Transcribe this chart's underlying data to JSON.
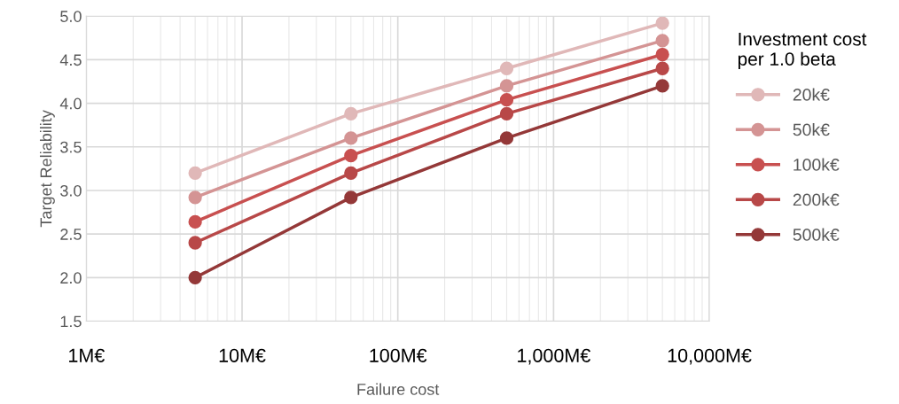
{
  "chart_data": {
    "type": "line",
    "xlabel": "Failure cost",
    "ylabel": "Target Reliability",
    "legend_title": "Investment cost\nper 1.0 beta",
    "x": [
      5,
      50,
      500,
      5000
    ],
    "series": [
      {
        "name": "20k€",
        "color": "#e0b8b8",
        "values": [
          3.2,
          3.88,
          4.4,
          4.92
        ]
      },
      {
        "name": "50k€",
        "color": "#d49494",
        "values": [
          2.92,
          3.6,
          4.2,
          4.72
        ]
      },
      {
        "name": "100k€",
        "color": "#c85050",
        "values": [
          2.64,
          3.4,
          4.04,
          4.56
        ]
      },
      {
        "name": "200k€",
        "color": "#b84848",
        "values": [
          2.4,
          3.2,
          3.88,
          4.4
        ]
      },
      {
        "name": "500k€",
        "color": "#943838",
        "values": [
          2.0,
          2.92,
          3.6,
          4.2
        ]
      }
    ],
    "log": "x",
    "xlim": [
      1,
      10000
    ],
    "xticks": [
      {
        "value": 1,
        "label": "1M€"
      },
      {
        "value": 10,
        "label": "10M€"
      },
      {
        "value": 100,
        "label": "100M€"
      },
      {
        "value": 1000,
        "label": "1,000M€"
      },
      {
        "value": 10000,
        "label": "10,000M€"
      }
    ],
    "ylim": [
      1.5,
      5.0
    ],
    "yticks": [
      {
        "value": 1.5,
        "label": "1.5"
      },
      {
        "value": 2.0,
        "label": "2.0"
      },
      {
        "value": 2.5,
        "label": "2.5"
      },
      {
        "value": 3.0,
        "label": "3.0"
      },
      {
        "value": 3.5,
        "label": "3.5"
      },
      {
        "value": 4.0,
        "label": "4.0"
      },
      {
        "value": 4.5,
        "label": "4.5"
      },
      {
        "value": 5.0,
        "label": "5.0"
      }
    ],
    "grid": true,
    "legend": "right",
    "marker": "circle",
    "line_style": "solid"
  }
}
